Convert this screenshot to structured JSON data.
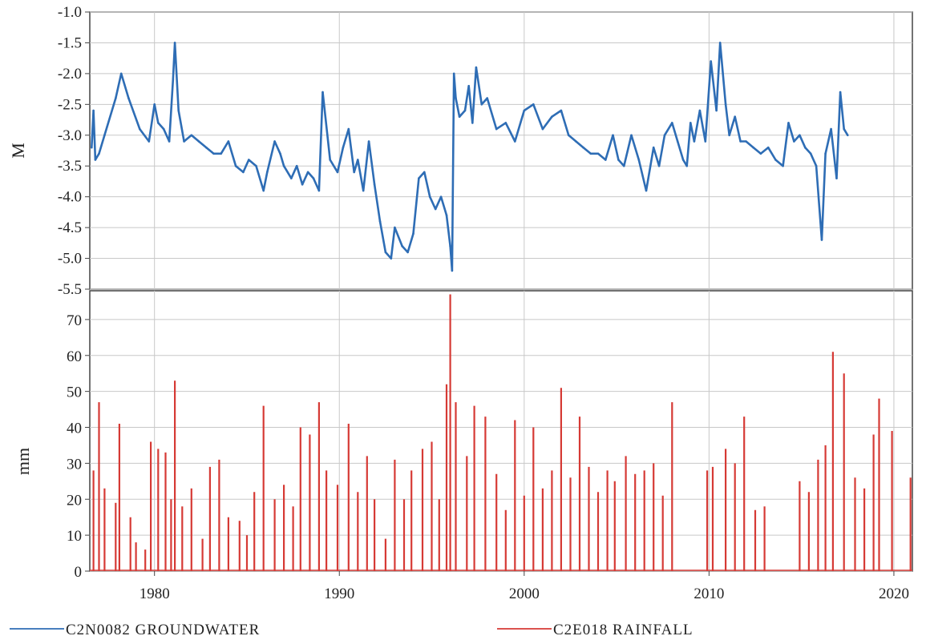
{
  "chart_data": [
    {
      "type": "line",
      "panel": "top",
      "ylabel": "M",
      "ylim": [
        -5.5,
        -1.0
      ],
      "yticks": [
        "-1.0",
        "-1.5",
        "-2.0",
        "-2.5",
        "-3.0",
        "-3.5",
        "-4.0",
        "-4.5",
        "-5.0",
        "-5.5"
      ],
      "xlim": [
        1976.5,
        2021.0
      ],
      "grid": true,
      "color": "#2e6db5",
      "series": [
        {
          "name": "C2N0082 GROUNDWATER",
          "x": [
            1976.6,
            1976.7,
            1976.8,
            1977.0,
            1977.3,
            1977.9,
            1978.2,
            1978.6,
            1979.2,
            1979.7,
            1980.0,
            1980.2,
            1980.5,
            1980.8,
            1981.0,
            1981.1,
            1981.3,
            1981.6,
            1982.0,
            1982.4,
            1982.8,
            1983.2,
            1983.6,
            1984.0,
            1984.4,
            1984.8,
            1985.1,
            1985.5,
            1985.9,
            1986.1,
            1986.5,
            1986.8,
            1987.0,
            1987.4,
            1987.7,
            1988.0,
            1988.3,
            1988.6,
            1988.9,
            1989.1,
            1989.5,
            1989.9,
            1990.2,
            1990.5,
            1990.8,
            1991.0,
            1991.3,
            1991.6,
            1991.9,
            1992.2,
            1992.5,
            1992.8,
            1993.0,
            1993.4,
            1993.7,
            1994.0,
            1994.3,
            1994.6,
            1994.9,
            1995.2,
            1995.5,
            1995.8,
            1996.0,
            1996.1,
            1996.2,
            1996.3,
            1996.5,
            1996.8,
            1997.0,
            1997.2,
            1997.4,
            1997.7,
            1998.0,
            1998.5,
            1999.0,
            1999.5,
            2000.0,
            2000.5,
            2001.0,
            2001.5,
            2002.0,
            2002.4,
            2002.8,
            2003.2,
            2003.6,
            2004.0,
            2004.4,
            2004.8,
            2005.1,
            2005.4,
            2005.8,
            2006.2,
            2006.6,
            2007.0,
            2007.3,
            2007.6,
            2008.0,
            2008.3,
            2008.6,
            2008.8,
            2009.0,
            2009.2,
            2009.5,
            2009.8,
            2010.1,
            2010.4,
            2010.6,
            2010.9,
            2011.1,
            2011.4,
            2011.7,
            2012.0,
            2012.4,
            2012.8,
            2013.2,
            2013.6,
            2014.0,
            2014.3,
            2014.6,
            2014.9,
            2015.2,
            2015.5,
            2015.8,
            2016.1,
            2016.3,
            2016.6,
            2016.9,
            2017.1,
            2017.3,
            2017.5
          ],
          "y": [
            -3.2,
            -2.6,
            -3.4,
            -3.3,
            -3.0,
            -2.4,
            -2.0,
            -2.4,
            -2.9,
            -3.1,
            -2.5,
            -2.8,
            -2.9,
            -3.1,
            -2.1,
            -1.5,
            -2.6,
            -3.1,
            -3.0,
            -3.1,
            -3.2,
            -3.3,
            -3.3,
            -3.1,
            -3.5,
            -3.6,
            -3.4,
            -3.5,
            -3.9,
            -3.6,
            -3.1,
            -3.3,
            -3.5,
            -3.7,
            -3.5,
            -3.8,
            -3.6,
            -3.7,
            -3.9,
            -2.3,
            -3.4,
            -3.6,
            -3.2,
            -2.9,
            -3.6,
            -3.4,
            -3.9,
            -3.1,
            -3.8,
            -4.4,
            -4.9,
            -5.0,
            -4.5,
            -4.8,
            -4.9,
            -4.6,
            -3.7,
            -3.6,
            -4.0,
            -4.2,
            -4.0,
            -4.3,
            -4.8,
            -5.2,
            -2.0,
            -2.4,
            -2.7,
            -2.6,
            -2.2,
            -2.8,
            -1.9,
            -2.5,
            -2.4,
            -2.9,
            -2.8,
            -3.1,
            -2.6,
            -2.5,
            -2.9,
            -2.7,
            -2.6,
            -3.0,
            -3.1,
            -3.2,
            -3.3,
            -3.3,
            -3.4,
            -3.0,
            -3.4,
            -3.5,
            -3.0,
            -3.4,
            -3.9,
            -3.2,
            -3.5,
            -3.0,
            -2.8,
            -3.1,
            -3.4,
            -3.5,
            -2.8,
            -3.1,
            -2.6,
            -3.1,
            -1.8,
            -2.6,
            -1.5,
            -2.5,
            -3.0,
            -2.7,
            -3.1,
            -3.1,
            -3.2,
            -3.3,
            -3.2,
            -3.4,
            -3.5,
            -2.8,
            -3.1,
            -3.0,
            -3.2,
            -3.3,
            -3.5,
            -4.7,
            -3.3,
            -2.9,
            -3.7,
            -2.3,
            -2.9,
            -3.0
          ]
        }
      ]
    },
    {
      "type": "bar",
      "panel": "bottom",
      "ylabel": "mm",
      "ylim": [
        0,
        78
      ],
      "yticks": [
        "0",
        "10",
        "20",
        "30",
        "40",
        "50",
        "60",
        "70"
      ],
      "xlim": [
        1976.5,
        2021.0
      ],
      "xticks": [
        "1980",
        "1990",
        "2000",
        "2010",
        "2020"
      ],
      "xtick_values": [
        1980,
        1990,
        2000,
        2010,
        2020
      ],
      "grid": true,
      "color": "#d63a35",
      "series": [
        {
          "name": "C2E018 RAINFALL",
          "x": [
            1976.7,
            1977.0,
            1977.3,
            1977.9,
            1978.1,
            1978.7,
            1979.0,
            1979.5,
            1979.8,
            1980.2,
            1980.6,
            1980.9,
            1981.1,
            1981.5,
            1982.0,
            1982.6,
            1983.0,
            1983.5,
            1984.0,
            1984.6,
            1985.0,
            1985.4,
            1985.9,
            1986.5,
            1987.0,
            1987.5,
            1987.9,
            1988.4,
            1988.9,
            1989.3,
            1989.9,
            1990.5,
            1991.0,
            1991.5,
            1991.9,
            1992.5,
            1993.0,
            1993.5,
            1993.9,
            1994.5,
            1995.0,
            1995.4,
            1995.8,
            1996.0,
            1996.3,
            1996.9,
            1997.3,
            1997.9,
            1998.5,
            1999.0,
            1999.5,
            2000.0,
            2000.5,
            2001.0,
            2001.5,
            2002.0,
            2002.5,
            2003.0,
            2003.5,
            2004.0,
            2004.5,
            2004.9,
            2005.5,
            2006.0,
            2006.5,
            2007.0,
            2007.5,
            2008.0,
            2009.9,
            2010.2,
            2010.9,
            2011.4,
            2011.9,
            2012.5,
            2013.0,
            2014.9,
            2015.4,
            2015.9,
            2016.3,
            2016.7,
            2017.3,
            2017.9,
            2018.4,
            2018.9,
            2019.2,
            2019.9,
            2020.9
          ],
          "values": [
            28,
            47,
            23,
            19,
            41,
            15,
            8,
            6,
            36,
            34,
            33,
            20,
            53,
            18,
            23,
            9,
            29,
            31,
            15,
            14,
            10,
            22,
            46,
            20,
            24,
            18,
            40,
            38,
            47,
            28,
            24,
            41,
            22,
            32,
            20,
            9,
            31,
            20,
            28,
            34,
            36,
            20,
            52,
            77,
            47,
            32,
            46,
            43,
            27,
            17,
            42,
            21,
            40,
            23,
            28,
            51,
            26,
            43,
            29,
            22,
            28,
            25,
            32,
            27,
            28,
            30,
            21,
            47,
            28,
            29,
            34,
            30,
            43,
            17,
            18,
            25,
            22,
            31,
            35,
            61,
            55,
            26,
            23,
            38,
            48,
            39,
            26
          ]
        }
      ]
    }
  ],
  "legend": {
    "items": [
      {
        "label": "C2N0082 GROUNDWATER",
        "color": "#2e6db5"
      },
      {
        "label": "C2E018 RAINFALL",
        "color": "#d63a35"
      }
    ]
  }
}
